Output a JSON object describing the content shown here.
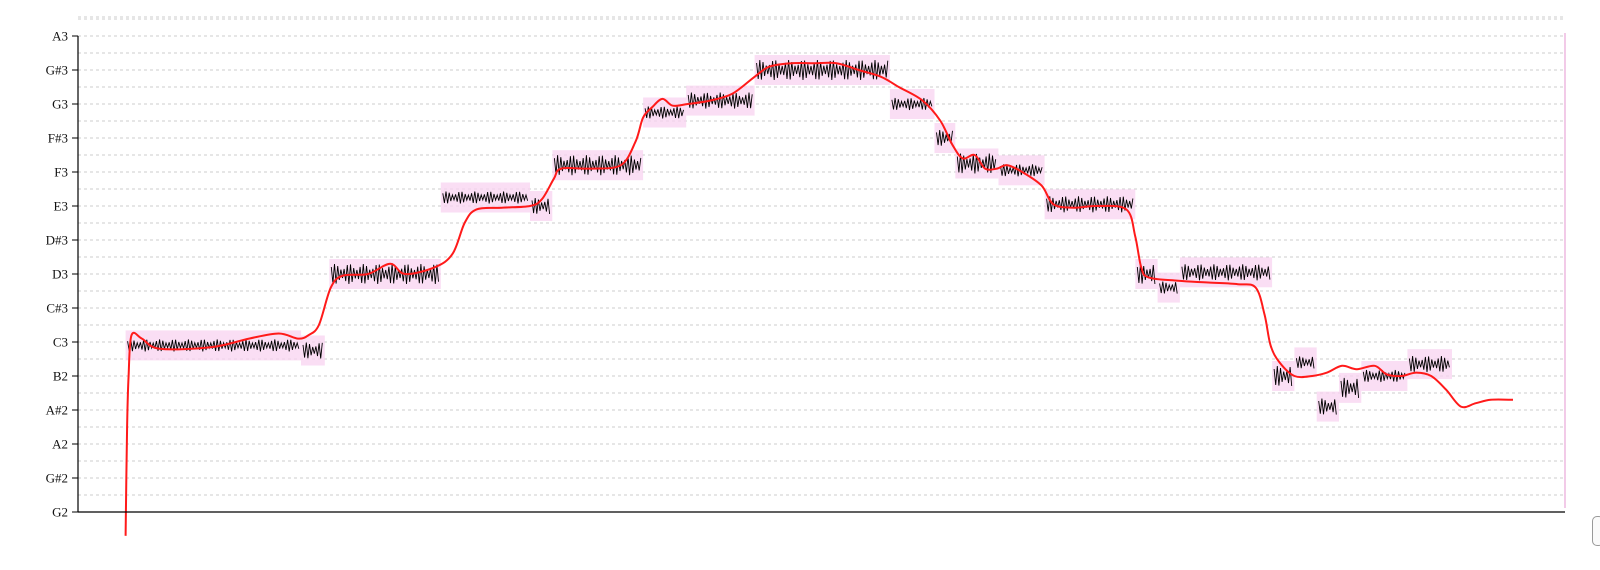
{
  "chart_data": {
    "type": "line",
    "title": "",
    "xlabel": "",
    "ylabel": "",
    "y_ticks": [
      "G2",
      "G#2",
      "A2",
      "A#2",
      "B2",
      "C3",
      "C#3",
      "D3",
      "D#3",
      "E3",
      "F3",
      "F#3",
      "G3",
      "G#3",
      "A3"
    ],
    "y_unit": "semitones above G2",
    "ylim": [
      -0.7,
      14
    ],
    "xlim": [
      0,
      100
    ],
    "grid": "horizontal dotted at each semitone and half-semitone",
    "colors": {
      "pitch_curve": "#ff1a1a",
      "note_box": "#f8d3f0",
      "waveform": "#000000",
      "grid": "#cccccc",
      "right_edge": "#e8a8d8"
    },
    "notes": [
      {
        "x0": 3.2,
        "x1": 15.0,
        "pitch": 4.9
      },
      {
        "x0": 15.0,
        "x1": 16.6,
        "pitch": 4.75
      },
      {
        "x0": 16.9,
        "x1": 24.4,
        "pitch": 7.0
      },
      {
        "x0": 24.4,
        "x1": 30.4,
        "pitch": 9.25
      },
      {
        "x0": 30.4,
        "x1": 31.9,
        "pitch": 9.0
      },
      {
        "x0": 31.9,
        "x1": 38.0,
        "pitch": 10.2
      },
      {
        "x0": 38.0,
        "x1": 40.9,
        "pitch": 11.75
      },
      {
        "x0": 40.9,
        "x1": 45.5,
        "pitch": 12.1
      },
      {
        "x0": 45.5,
        "x1": 54.6,
        "pitch": 13.0
      },
      {
        "x0": 54.6,
        "x1": 57.6,
        "pitch": 12.0
      },
      {
        "x0": 57.6,
        "x1": 59.0,
        "pitch": 11.0
      },
      {
        "x0": 59.0,
        "x1": 61.9,
        "pitch": 10.25
      },
      {
        "x0": 61.9,
        "x1": 65.0,
        "pitch": 10.05
      },
      {
        "x0": 65.0,
        "x1": 71.1,
        "pitch": 9.05
      },
      {
        "x0": 71.1,
        "x1": 72.6,
        "pitch": 7.0
      },
      {
        "x0": 72.6,
        "x1": 74.1,
        "pitch": 6.6
      },
      {
        "x0": 74.1,
        "x1": 80.3,
        "pitch": 7.05
      },
      {
        "x0": 80.3,
        "x1": 81.8,
        "pitch": 4.0
      },
      {
        "x0": 81.8,
        "x1": 83.3,
        "pitch": 4.4
      },
      {
        "x0": 83.3,
        "x1": 84.8,
        "pitch": 3.1
      },
      {
        "x0": 84.8,
        "x1": 86.3,
        "pitch": 3.65
      },
      {
        "x0": 86.3,
        "x1": 89.4,
        "pitch": 4.0
      },
      {
        "x0": 89.4,
        "x1": 92.4,
        "pitch": 4.35
      }
    ],
    "pitch_curve": [
      [
        3.2,
        -0.7
      ],
      [
        3.3,
        2.5
      ],
      [
        3.4,
        4.0
      ],
      [
        3.6,
        5.2
      ],
      [
        4.3,
        5.1
      ],
      [
        5.5,
        4.8
      ],
      [
        9.0,
        4.85
      ],
      [
        11.5,
        5.1
      ],
      [
        13.5,
        5.25
      ],
      [
        14.8,
        5.1
      ],
      [
        15.5,
        5.2
      ],
      [
        16.2,
        5.5
      ],
      [
        17.0,
        6.6
      ],
      [
        17.8,
        6.95
      ],
      [
        19.5,
        7.0
      ],
      [
        21.0,
        7.3
      ],
      [
        22.0,
        7.0
      ],
      [
        24.0,
        7.2
      ],
      [
        25.2,
        7.6
      ],
      [
        26.0,
        8.5
      ],
      [
        26.8,
        8.9
      ],
      [
        28.5,
        8.95
      ],
      [
        30.4,
        9.0
      ],
      [
        31.2,
        9.2
      ],
      [
        32.0,
        9.8
      ],
      [
        32.5,
        10.1
      ],
      [
        34.5,
        10.1
      ],
      [
        36.5,
        10.2
      ],
      [
        37.5,
        10.9
      ],
      [
        38.0,
        11.6
      ],
      [
        38.6,
        11.9
      ],
      [
        39.3,
        12.15
      ],
      [
        40.0,
        11.95
      ],
      [
        41.0,
        12.0
      ],
      [
        42.5,
        12.1
      ],
      [
        44.0,
        12.3
      ],
      [
        45.5,
        12.8
      ],
      [
        46.5,
        13.1
      ],
      [
        48.0,
        13.2
      ],
      [
        49.5,
        13.2
      ],
      [
        51.0,
        13.2
      ],
      [
        52.5,
        13.0
      ],
      [
        54.0,
        12.8
      ],
      [
        55.2,
        12.5
      ],
      [
        56.8,
        12.1
      ],
      [
        58.0,
        11.5
      ],
      [
        58.8,
        10.8
      ],
      [
        59.5,
        10.4
      ],
      [
        60.3,
        10.5
      ],
      [
        61.0,
        10.1
      ],
      [
        61.8,
        10.1
      ],
      [
        62.5,
        10.2
      ],
      [
        63.5,
        10.0
      ],
      [
        64.8,
        9.6
      ],
      [
        65.6,
        9.05
      ],
      [
        67.0,
        8.95
      ],
      [
        68.5,
        9.0
      ],
      [
        70.5,
        8.9
      ],
      [
        71.1,
        8.1
      ],
      [
        71.5,
        7.2
      ],
      [
        72.0,
        6.9
      ],
      [
        74.0,
        6.8
      ],
      [
        76.0,
        6.75
      ],
      [
        78.0,
        6.7
      ],
      [
        79.2,
        6.6
      ],
      [
        79.8,
        5.8
      ],
      [
        80.2,
        4.9
      ],
      [
        80.8,
        4.4
      ],
      [
        81.8,
        4.0
      ],
      [
        83.0,
        4.0
      ],
      [
        84.0,
        4.1
      ],
      [
        85.0,
        4.3
      ],
      [
        86.0,
        4.2
      ],
      [
        87.2,
        4.3
      ],
      [
        88.0,
        4.05
      ],
      [
        89.0,
        4.0
      ],
      [
        90.0,
        4.1
      ],
      [
        91.0,
        4.0
      ],
      [
        92.0,
        3.6
      ],
      [
        93.0,
        3.1
      ],
      [
        94.0,
        3.2
      ],
      [
        95.0,
        3.3
      ],
      [
        96.5,
        3.3
      ]
    ]
  }
}
